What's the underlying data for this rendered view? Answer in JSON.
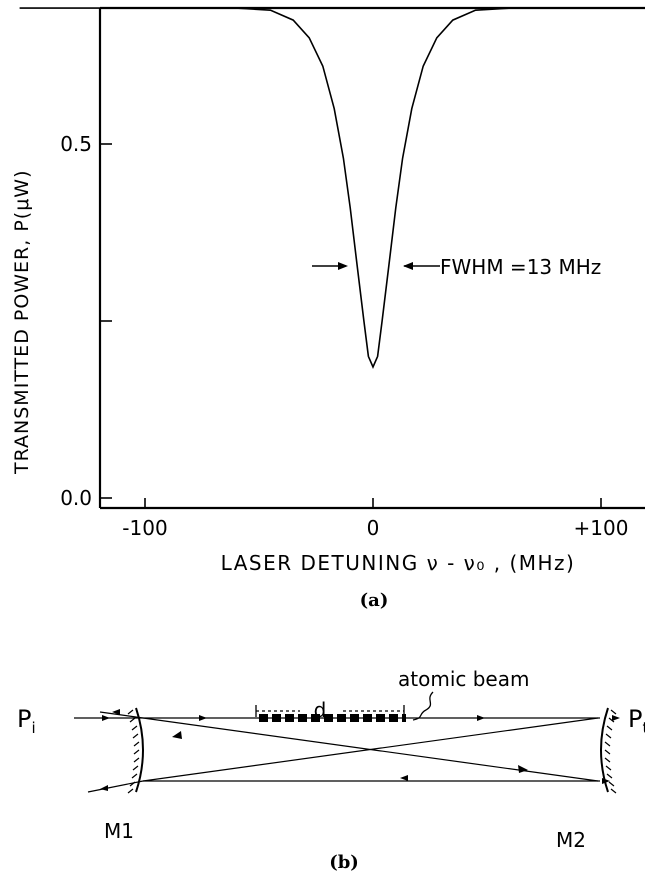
{
  "chart_data": {
    "type": "line",
    "title": "",
    "xlabel": "LASER DETUNING  ν - ν₀ , (MHz)",
    "ylabel": "TRANSMITTED POWER, P(μW)",
    "xlim": [
      -160,
      160
    ],
    "ylim": [
      0.0,
      0.73
    ],
    "x_ticks": [
      -100,
      0,
      100
    ],
    "x_tick_labels": [
      "-100",
      "0",
      "+100"
    ],
    "y_ticks": [
      0.0,
      0.25,
      0.5,
      0.75
    ],
    "y_tick_labels": [
      "0.0",
      "",
      "0.5",
      ""
    ],
    "grid": false,
    "series": [
      {
        "x": [
          -155,
          -100,
          -60,
          -45,
          -35,
          -28,
          -22,
          -17,
          -13,
          -10,
          -7,
          -4,
          -2,
          0,
          2,
          4,
          7,
          10,
          13,
          17,
          22,
          28,
          35,
          45,
          60,
          100,
          155
        ],
        "y": [
          0.692,
          0.692,
          0.692,
          0.689,
          0.675,
          0.65,
          0.61,
          0.55,
          0.48,
          0.41,
          0.33,
          0.25,
          0.2,
          0.185,
          0.2,
          0.25,
          0.33,
          0.41,
          0.48,
          0.55,
          0.61,
          0.65,
          0.675,
          0.689,
          0.692,
          0.692,
          0.692
        ]
      }
    ],
    "annotation": "FWHM =13 MHz",
    "panel_label": "(a)"
  },
  "diagram": {
    "beam_label": "atomic beam",
    "d_label": "d",
    "input_label": "P",
    "input_sub": "i",
    "output_label": "P",
    "output_sub": "t",
    "mirror1_label": "M1",
    "mirror2_label": "M2",
    "panel_label": "(b)"
  }
}
